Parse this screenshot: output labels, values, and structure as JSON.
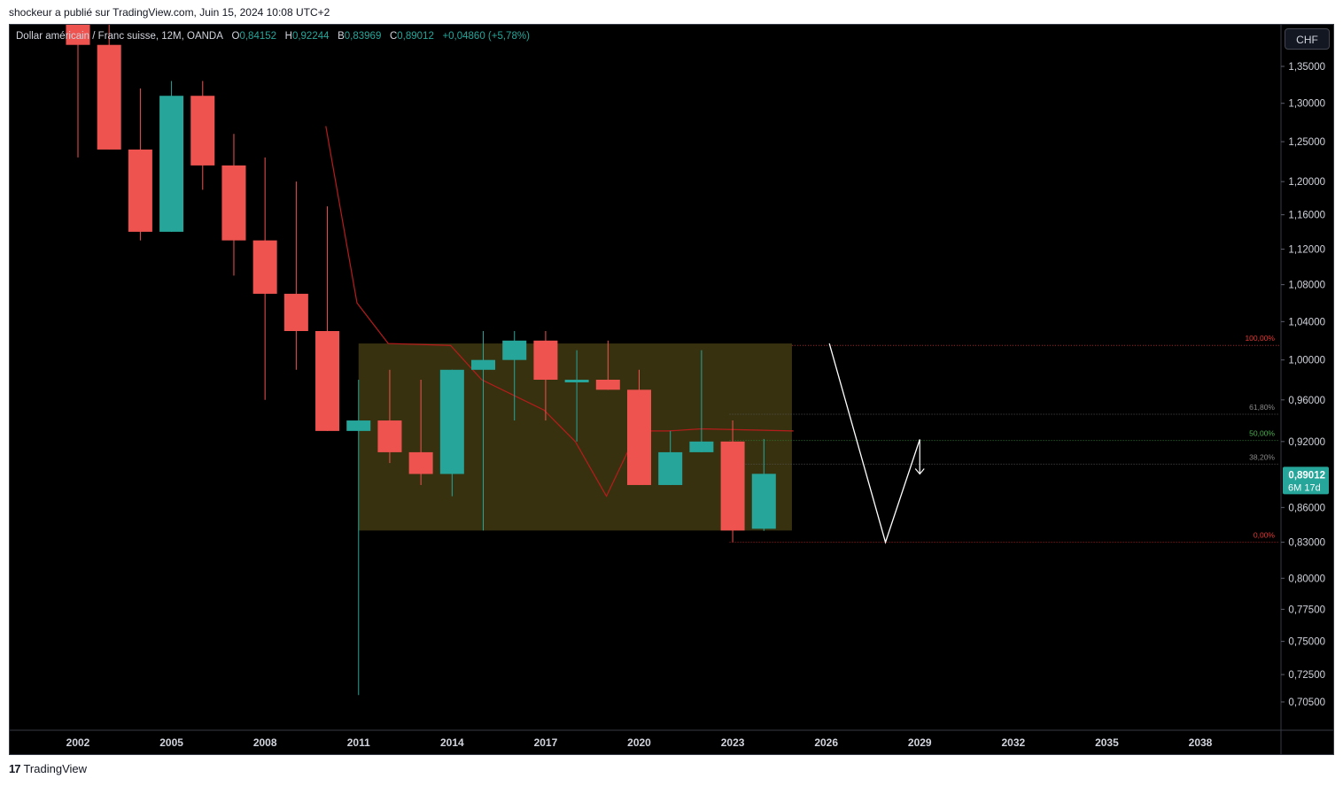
{
  "header": {
    "caption": "shockeur a publié sur TradingView.com, Juin 15, 2024 10:08 UTC+2"
  },
  "legend": {
    "symbol": "Dollar américain / Franc suisse, 12M, OANDA",
    "o_key": "O",
    "o_val": "0,84152",
    "h_key": "H",
    "h_val": "0,92244",
    "b_key": "B",
    "b_val": "0,83969",
    "c_key": "C",
    "c_val": "0,89012",
    "change": "+0,04860 (+5,78%)"
  },
  "currency_button": "CHF",
  "last_price": {
    "value": "0,89012",
    "countdown": "6M 17d"
  },
  "brand": {
    "name": "TradingView",
    "logo_text": "17"
  },
  "colors": {
    "up": "#26a69a",
    "down": "#ef5350",
    "box_fill": "#3a3410",
    "fib_red": "#b22222",
    "fib_green": "#4caf50",
    "background": "#000000"
  },
  "chart_data": {
    "type": "candlestick",
    "y_scale": "log",
    "ylim": [
      0.68,
      1.42
    ],
    "x_range": [
      2000.5,
      2041
    ],
    "x_ticks": [
      {
        "x": 2002,
        "label": "2002"
      },
      {
        "x": 2005,
        "label": "2005"
      },
      {
        "x": 2008,
        "label": "2008"
      },
      {
        "x": 2011,
        "label": "2011"
      },
      {
        "x": 2014,
        "label": "2014"
      },
      {
        "x": 2017,
        "label": "2017"
      },
      {
        "x": 2020,
        "label": "2020"
      },
      {
        "x": 2023,
        "label": "2023"
      },
      {
        "x": 2026,
        "label": "2026"
      },
      {
        "x": 2029,
        "label": "2029"
      },
      {
        "x": 2032,
        "label": "2032"
      },
      {
        "x": 2035,
        "label": "2035"
      },
      {
        "x": 2038,
        "label": "2038"
      }
    ],
    "y_ticks": [
      {
        "v": 1.35,
        "label": "1,35000"
      },
      {
        "v": 1.3,
        "label": "1,30000"
      },
      {
        "v": 1.25,
        "label": "1,25000"
      },
      {
        "v": 1.2,
        "label": "1,20000"
      },
      {
        "v": 1.16,
        "label": "1,16000"
      },
      {
        "v": 1.12,
        "label": "1,12000"
      },
      {
        "v": 1.08,
        "label": "1,08000"
      },
      {
        "v": 1.04,
        "label": "1,04000"
      },
      {
        "v": 1.0,
        "label": "1,00000"
      },
      {
        "v": 0.96,
        "label": "0,96000"
      },
      {
        "v": 0.92,
        "label": "0,92000"
      },
      {
        "v": 0.86,
        "label": "0,86000"
      },
      {
        "v": 0.83,
        "label": "0,83000"
      },
      {
        "v": 0.8,
        "label": "0,80000"
      },
      {
        "v": 0.775,
        "label": "0,77500"
      },
      {
        "v": 0.75,
        "label": "0,75000"
      },
      {
        "v": 0.725,
        "label": "0,72500"
      },
      {
        "v": 0.705,
        "label": "0,70500"
      }
    ],
    "candles": [
      {
        "year": 2002,
        "o": 1.67,
        "h": 1.72,
        "l": 1.23,
        "c": 1.38
      },
      {
        "year": 2003,
        "o": 1.38,
        "h": 1.42,
        "l": 1.24,
        "c": 1.24
      },
      {
        "year": 2004,
        "o": 1.24,
        "h": 1.32,
        "l": 1.13,
        "c": 1.14
      },
      {
        "year": 2005,
        "o": 1.14,
        "h": 1.33,
        "l": 1.14,
        "c": 1.31
      },
      {
        "year": 2006,
        "o": 1.31,
        "h": 1.33,
        "l": 1.19,
        "c": 1.22
      },
      {
        "year": 2007,
        "o": 1.22,
        "h": 1.26,
        "l": 1.09,
        "c": 1.13
      },
      {
        "year": 2008,
        "o": 1.13,
        "h": 1.23,
        "l": 0.96,
        "c": 1.07
      },
      {
        "year": 2009,
        "o": 1.07,
        "h": 1.2,
        "l": 0.99,
        "c": 1.03
      },
      {
        "year": 2010,
        "o": 1.03,
        "h": 1.17,
        "l": 0.93,
        "c": 0.93
      },
      {
        "year": 2011,
        "o": 0.93,
        "h": 0.98,
        "l": 0.71,
        "c": 0.94
      },
      {
        "year": 2012,
        "o": 0.94,
        "h": 0.99,
        "l": 0.9,
        "c": 0.91
      },
      {
        "year": 2013,
        "o": 0.91,
        "h": 0.98,
        "l": 0.88,
        "c": 0.89
      },
      {
        "year": 2014,
        "o": 0.89,
        "h": 0.99,
        "l": 0.87,
        "c": 0.99
      },
      {
        "year": 2015,
        "o": 0.99,
        "h": 1.03,
        "l": 0.84,
        "c": 1.0
      },
      {
        "year": 2016,
        "o": 1.0,
        "h": 1.03,
        "l": 0.94,
        "c": 1.02
      },
      {
        "year": 2017,
        "o": 1.02,
        "h": 1.03,
        "l": 0.94,
        "c": 0.98
      },
      {
        "year": 2018,
        "o": 0.98,
        "h": 1.01,
        "l": 0.92,
        "c": 0.98
      },
      {
        "year": 2019,
        "o": 0.98,
        "h": 1.02,
        "l": 0.97,
        "c": 0.97
      },
      {
        "year": 2020,
        "o": 0.97,
        "h": 0.99,
        "l": 0.88,
        "c": 0.88
      },
      {
        "year": 2021,
        "o": 0.88,
        "h": 0.93,
        "l": 0.88,
        "c": 0.91
      },
      {
        "year": 2022,
        "o": 0.91,
        "h": 1.01,
        "l": 0.91,
        "c": 0.92
      },
      {
        "year": 2023,
        "o": 0.92,
        "h": 0.94,
        "l": 0.83,
        "c": 0.84
      },
      {
        "year": 2024,
        "o": 0.84152,
        "h": 0.92244,
        "l": 0.83969,
        "c": 0.89012
      }
    ],
    "box": {
      "x0": 2011.0,
      "x1": 2024.9,
      "top": 1.017,
      "bottom": 0.84
    },
    "fib_levels": [
      {
        "label": "100,00%",
        "v": 1.015,
        "color": "#b22222",
        "x0": 2024.9
      },
      {
        "label": "61,80%",
        "v": 0.946,
        "color": "#555555",
        "x0": 2022.9
      },
      {
        "label": "50,00%",
        "v": 0.921,
        "color": "#2e7d32",
        "x0": 2022.9
      },
      {
        "label": "38,20%",
        "v": 0.899,
        "color": "#555555",
        "x0": 2022.9
      },
      {
        "label": "0,00%",
        "v": 0.83,
        "color": "#b22222",
        "x0": 2022.9
      }
    ],
    "ma_line": [
      {
        "x": 2009.95,
        "v": 1.27
      },
      {
        "x": 2010.95,
        "v": 1.06
      },
      {
        "x": 2011.95,
        "v": 1.017
      },
      {
        "x": 2013.95,
        "v": 1.015
      },
      {
        "x": 2014.95,
        "v": 0.98
      },
      {
        "x": 2016.95,
        "v": 0.95
      },
      {
        "x": 2017.95,
        "v": 0.92
      },
      {
        "x": 2018.95,
        "v": 0.87
      },
      {
        "x": 2019.95,
        "v": 0.93
      },
      {
        "x": 2020.95,
        "v": 0.93
      },
      {
        "x": 2022.0,
        "v": 0.932
      },
      {
        "x": 2024.95,
        "v": 0.93
      }
    ],
    "projection": [
      {
        "x": 2026.1,
        "v": 1.017
      },
      {
        "x": 2027.9,
        "v": 0.83
      },
      {
        "x": 2029.0,
        "v": 0.922
      }
    ],
    "arrow": {
      "x": 2029.0,
      "v0": 0.922,
      "v1": 0.89
    }
  }
}
